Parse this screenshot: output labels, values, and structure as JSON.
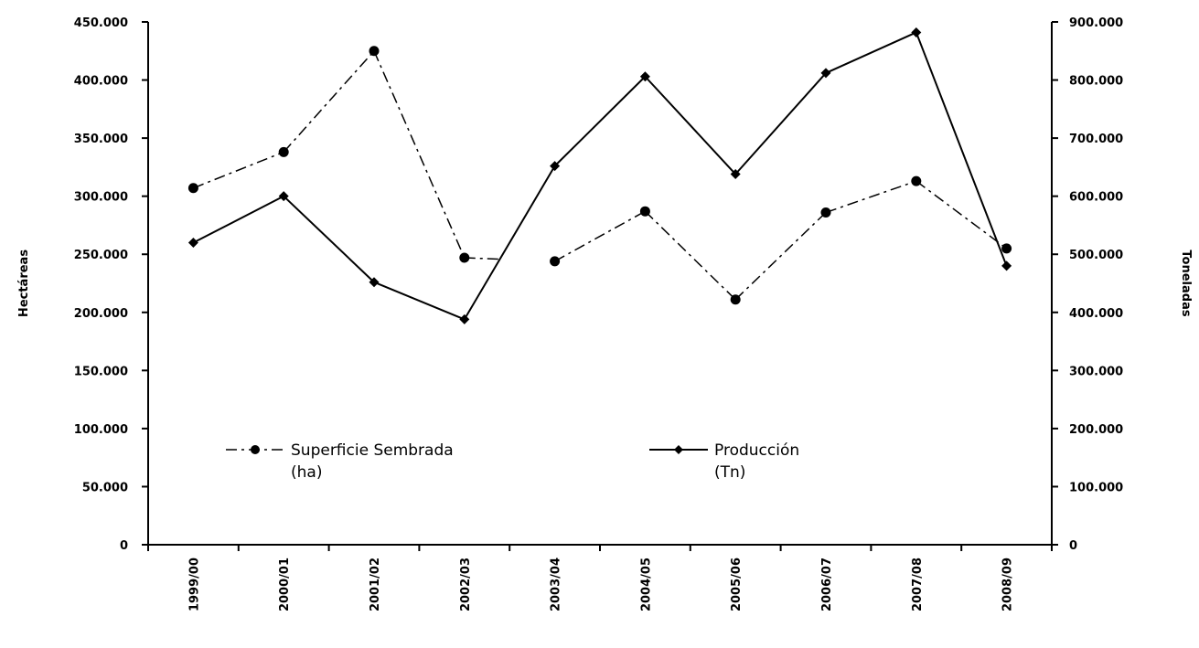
{
  "chart_data": {
    "type": "line",
    "categories": [
      "1999/00",
      "2000/01",
      "2001/02",
      "2002/03",
      "2003/04",
      "2004/05",
      "2005/06",
      "2006/07",
      "2007/08",
      "2008/09"
    ],
    "series": [
      {
        "name": "Superficie Sembrada (ha)",
        "name_lines": [
          "Superficie Sembrada",
          "(ha)"
        ],
        "axis": "left",
        "style": "dash-dot",
        "marker": "circle",
        "values": [
          307000,
          338000,
          425000,
          247000,
          244000,
          287000,
          211000,
          286000,
          313000,
          255000
        ],
        "gaps_after_index": [
          3
        ]
      },
      {
        "name": "Producción (Tn)",
        "name_lines": [
          "Producción",
          "(Tn)"
        ],
        "axis": "right",
        "style": "solid",
        "marker": "diamond",
        "values": [
          520000,
          600000,
          452000,
          388000,
          652000,
          806000,
          638000,
          812000,
          882000,
          480000
        ]
      }
    ],
    "ylabel": "Hectáreas",
    "y2label": "Toneladas",
    "ylim": [
      0,
      450000
    ],
    "y2lim": [
      0,
      900000
    ],
    "yticks": [
      "0",
      "50.000",
      "100.000",
      "150.000",
      "200.000",
      "250.000",
      "300.000",
      "350.000",
      "400.000",
      "450.000"
    ],
    "y2ticks": [
      "0",
      "100.000",
      "200.000",
      "300.000",
      "400.000",
      "500.000",
      "600.000",
      "700.000",
      "800.000",
      "900.000"
    ],
    "grid": false,
    "legend_position": "inside-bottom",
    "colors": {
      "lines": "#000000",
      "background": "#ffffff"
    }
  }
}
